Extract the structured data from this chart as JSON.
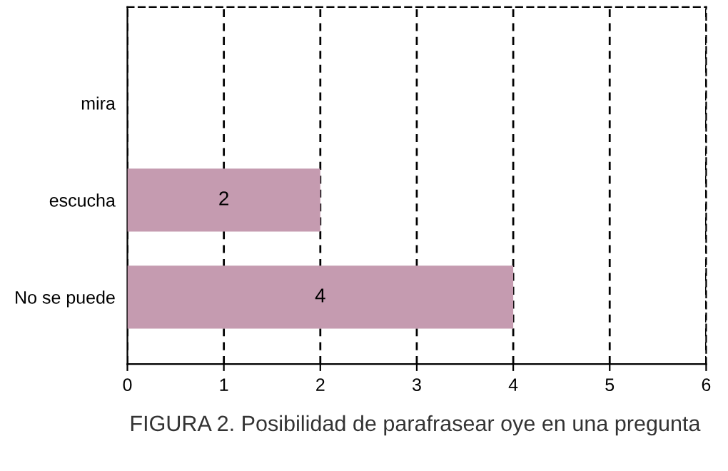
{
  "chart_data": {
    "type": "bar",
    "orientation": "horizontal",
    "categories": [
      "mira",
      "escucha",
      "No se puede"
    ],
    "values": [
      0,
      2,
      4
    ],
    "value_labels": [
      null,
      "2",
      "4"
    ],
    "color": "#c59bb0",
    "xlim": [
      0,
      6
    ],
    "xticks": [
      0,
      1,
      2,
      3,
      4,
      5,
      6
    ],
    "grid": "x",
    "annotations": [
      "FIGURA 2. Posibilidad de parafrasear oye en una pregunta"
    ]
  }
}
